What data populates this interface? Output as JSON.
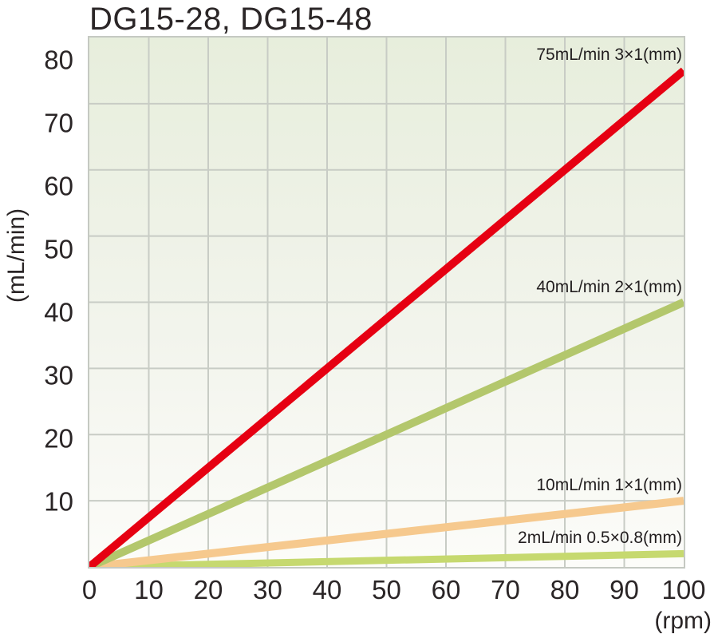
{
  "title": "DG15-28, DG15-48",
  "chart_data": {
    "type": "line",
    "title": "DG15-28, DG15-48",
    "xlabel": "(rpm)",
    "ylabel": "(mL/min)",
    "xlim": [
      0,
      100
    ],
    "ylim": [
      0,
      80
    ],
    "x_ticks": [
      0,
      10,
      20,
      30,
      40,
      50,
      60,
      70,
      80,
      90,
      100
    ],
    "y_ticks": [
      80,
      70,
      60,
      50,
      40,
      30,
      20,
      10
    ],
    "grid": true,
    "legend_position": "inline-right",
    "series": [
      {
        "name": "tubing-3x1mm",
        "label": "75mL/min 3×1(mm)",
        "color": "#e60012",
        "x": [
          0,
          100
        ],
        "y": [
          0,
          75
        ],
        "width": 10
      },
      {
        "name": "tubing-2x1mm",
        "label": "40mL/min 2×1(mm)",
        "color": "#b3c76c",
        "x": [
          0,
          100
        ],
        "y": [
          0,
          40
        ],
        "width": 10
      },
      {
        "name": "tubing-1x1mm",
        "label": "10mL/min 1×1(mm)",
        "color": "#f6c98e",
        "x": [
          0,
          100
        ],
        "y": [
          0,
          10
        ],
        "width": 10
      },
      {
        "name": "tubing-0.5x0.8mm",
        "label": "2mL/min 0.5×0.8(mm)",
        "color": "#c6d96f",
        "x": [
          0,
          100
        ],
        "y": [
          0,
          2
        ],
        "width": 9
      }
    ],
    "grid_color": "#c8ccc5",
    "plot_bg_gradient": [
      "#e7eedc",
      "#f2f4ec",
      "#fcfcf9"
    ],
    "text_color": "#2a2526"
  }
}
